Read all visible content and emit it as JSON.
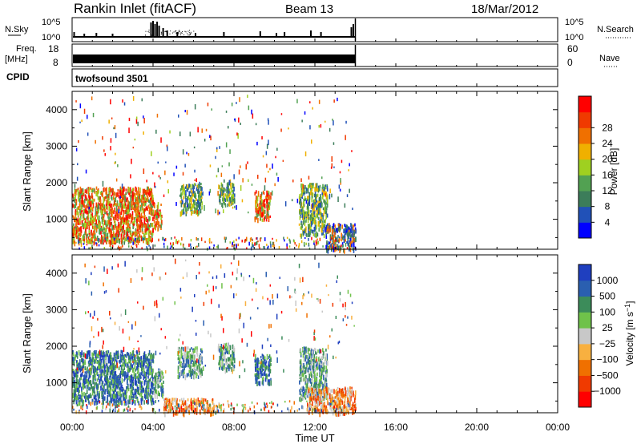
{
  "header": {
    "station": "Rankin Inlet (fitACF)",
    "beam": "Beam 13",
    "date": "18/Mar/2012"
  },
  "nsky": {
    "label": "N.Sky",
    "ticks_left": [
      "10^5",
      "10^0"
    ],
    "ticks_right": [
      "10^5",
      "10^0"
    ],
    "right_label": "N.Search"
  },
  "freq": {
    "label_top": "Freq.",
    "label_bottom": "[MHz]",
    "ticks_left": [
      "18",
      "8"
    ],
    "ticks_right": [
      "60",
      "0"
    ],
    "right_label": "Nave"
  },
  "cpid": {
    "label": "CPID",
    "value": "twofsound 3501"
  },
  "colors": {
    "power_scale": [
      "#0000ff",
      "#2151b8",
      "#3c7d5a",
      "#52a152",
      "#9fd020",
      "#f0b000",
      "#f07000",
      "#f03a00",
      "#ff0000"
    ],
    "velocity_scale": [
      "#ff0000",
      "#f03a00",
      "#f07000",
      "#f8b040",
      "#c8c8c8",
      "#6fc24a",
      "#3c8c5a",
      "#2a5fb0",
      "#1f3fbf"
    ]
  },
  "chart_data": [
    {
      "type": "heatmap",
      "panel": "power",
      "xlabel": "",
      "ylabel": "Slant Range [km]",
      "xlim": [
        "00:00",
        "24:00"
      ],
      "ylim": [
        180,
        4500
      ],
      "yticks": [
        1000,
        2000,
        3000,
        4000
      ],
      "ytick_labels": [
        "1000",
        "2000",
        "3000",
        "4000"
      ],
      "colorbar_label": "Power [dB]",
      "colorbar_ticks": [
        "4",
        "8",
        "12",
        "16",
        "20",
        "24",
        "28"
      ],
      "data_end_time": "14:00",
      "blobs": [
        {
          "t0": 0.0,
          "t1": 4.0,
          "r0": 400,
          "r1": 1900,
          "level": "high"
        },
        {
          "t0": 4.0,
          "t1": 4.4,
          "r0": 800,
          "r1": 1500,
          "level": "high"
        },
        {
          "t0": 5.3,
          "t1": 6.4,
          "r0": 1200,
          "r1": 2000,
          "level": "medium"
        },
        {
          "t0": 7.2,
          "t1": 8.0,
          "r0": 1400,
          "r1": 2100,
          "level": "medium"
        },
        {
          "t0": 9.0,
          "t1": 9.8,
          "r0": 1000,
          "r1": 1800,
          "level": "high"
        },
        {
          "t0": 11.2,
          "t1": 12.6,
          "r0": 600,
          "r1": 2000,
          "level": "medium"
        },
        {
          "t0": 12.5,
          "t1": 14.0,
          "r0": 200,
          "r1": 900,
          "level": "low"
        }
      ]
    },
    {
      "type": "heatmap",
      "panel": "velocity",
      "xlabel": "Time UT",
      "ylabel": "Slant Range [km]",
      "xlim": [
        "00:00",
        "24:00"
      ],
      "xticks": [
        "00:00",
        "04:00",
        "08:00",
        "12:00",
        "16:00",
        "20:00",
        "00:00"
      ],
      "ylim": [
        180,
        4500
      ],
      "yticks": [
        1000,
        2000,
        3000,
        4000
      ],
      "ytick_labels": [
        "1000",
        "2000",
        "3000",
        "4000"
      ],
      "colorbar_label": "Velocity [m s^-1]",
      "colorbar_ticks": [
        "1000",
        "500",
        "100",
        "25",
        "-25",
        "-100",
        "-500",
        "-1000"
      ],
      "data_end_time": "14:00",
      "blobs": [
        {
          "t0": 0.0,
          "t1": 4.0,
          "r0": 500,
          "r1": 1900,
          "level": "toward_fast"
        },
        {
          "t0": 4.0,
          "t1": 4.5,
          "r0": 700,
          "r1": 1400,
          "level": "toward"
        },
        {
          "t0": 5.2,
          "t1": 6.4,
          "r0": 1200,
          "r1": 2000,
          "level": "toward"
        },
        {
          "t0": 7.2,
          "t1": 8.0,
          "r0": 1400,
          "r1": 2100,
          "level": "toward"
        },
        {
          "t0": 9.0,
          "t1": 9.8,
          "r0": 1000,
          "r1": 1800,
          "level": "toward_fast"
        },
        {
          "t0": 11.2,
          "t1": 12.6,
          "r0": 600,
          "r1": 2000,
          "level": "toward"
        },
        {
          "t0": 11.6,
          "t1": 14.0,
          "r0": 200,
          "r1": 900,
          "level": "away"
        },
        {
          "t0": 4.5,
          "t1": 7.0,
          "r0": 200,
          "r1": 600,
          "level": "away"
        }
      ]
    }
  ]
}
